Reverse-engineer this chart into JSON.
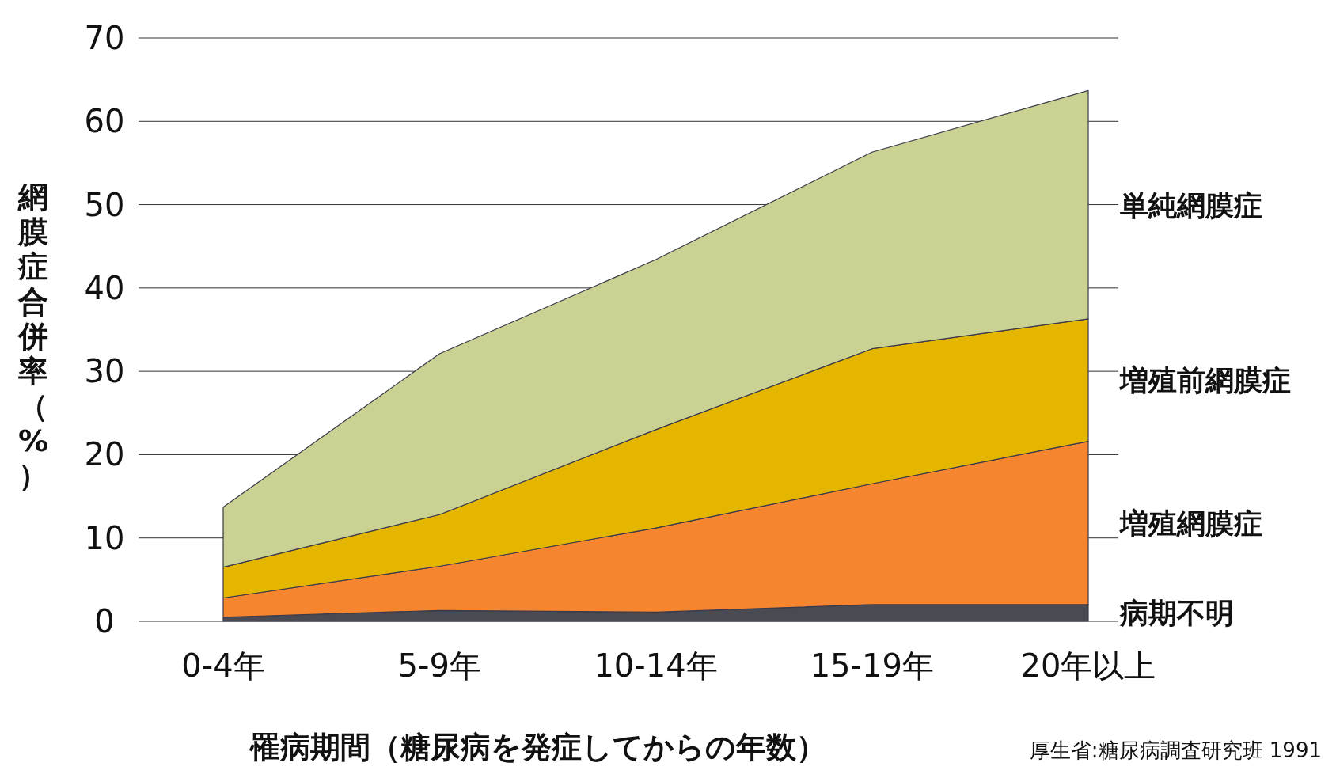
{
  "chart_data": {
    "type": "area",
    "stacked": true,
    "xlabel": "罹病期間（糖尿病を発症してからの年数）",
    "ylabel": "網膜症合併率（%）",
    "categories": [
      "0-4年",
      "5-9年",
      "10-14年",
      "15-19年",
      "20年以上"
    ],
    "series": [
      {
        "name": "病期不明",
        "color": "#4a4a52",
        "values": [
          0.5,
          1.3,
          1.1,
          2,
          2
        ]
      },
      {
        "name": "増殖網膜症",
        "color": "#f6852f",
        "values": [
          2.3,
          5.3,
          10.1,
          14.5,
          19.6
        ]
      },
      {
        "name": "増殖前網膜症",
        "color": "#e5b600",
        "values": [
          3.7,
          6.2,
          11.8,
          16.2,
          14.7
        ]
      },
      {
        "name": "単純網膜症",
        "color": "#cbd192",
        "values": [
          7.2,
          19.3,
          20.4,
          23.6,
          27.4
        ]
      }
    ],
    "ylim": [
      0,
      70
    ],
    "yticks": [
      0,
      10,
      20,
      30,
      40,
      50,
      60,
      70
    ],
    "grid": "y",
    "legend": "right",
    "annotations": [
      "厚生省:糖尿病調査研究班 1991"
    ]
  }
}
